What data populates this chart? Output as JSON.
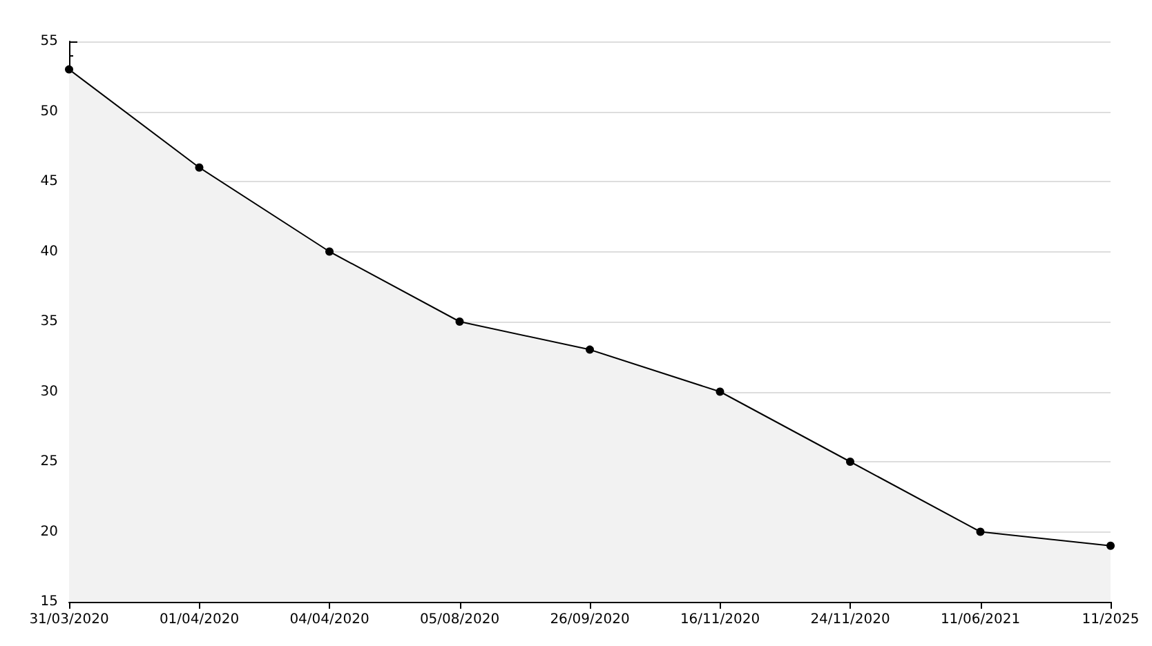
{
  "chart_data": {
    "type": "area",
    "categories": [
      "31/03/2020",
      "01/04/2020",
      "04/04/2020",
      "05/08/2020",
      "26/09/2020",
      "16/11/2020",
      "24/11/2020",
      "11/06/2021",
      "11/2025"
    ],
    "series": [
      {
        "color": "#000000",
        "values": [
          53,
          46,
          40,
          35,
          33,
          30,
          25,
          20,
          19
        ]
      }
    ],
    "ylim": [
      15,
      55
    ],
    "yticks": [
      15,
      20,
      25,
      30,
      35,
      40,
      45,
      50,
      55
    ],
    "grid": "y",
    "marker": "circle",
    "line_style": "solid"
  }
}
